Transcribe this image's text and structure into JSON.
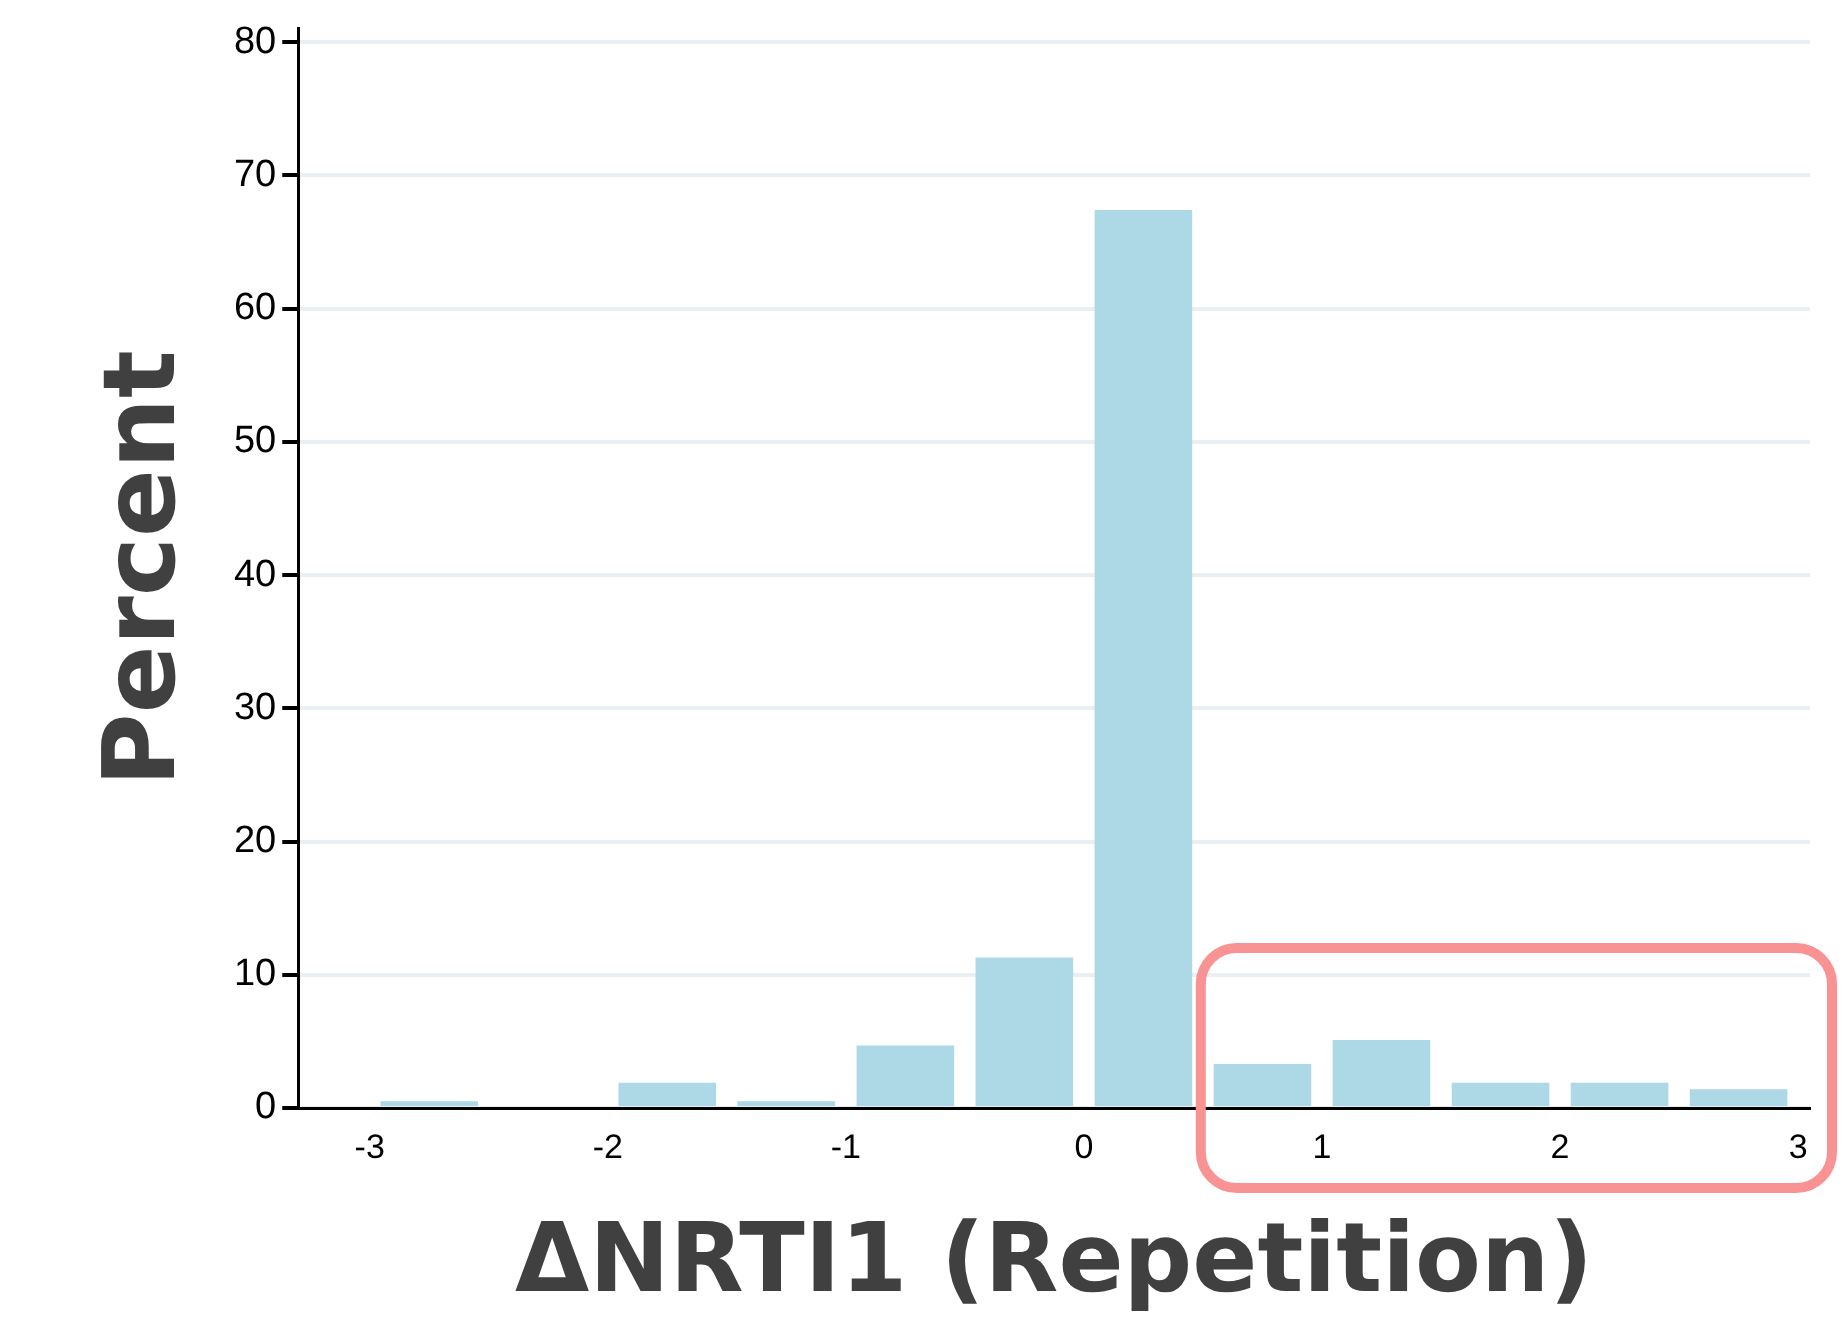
{
  "chart_data": {
    "type": "histogram",
    "xlabel": "ΔNRTI1 (Repetition)",
    "ylabel": "Percent",
    "bins": [
      -3,
      -2.5,
      -2,
      -1.5,
      -1,
      -0.5,
      0,
      0.5,
      1,
      1.5,
      2,
      2.5,
      3
    ],
    "values": [
      0.5,
      0,
      1.9,
      0.5,
      4.7,
      11.3,
      67.4,
      3.3,
      5.1,
      1.9,
      1.9,
      1.4
    ],
    "color": "#add8e6",
    "xlim": [
      -3.3,
      3.05
    ],
    "xticks": [
      -3,
      -2,
      -1,
      0,
      1,
      2,
      3
    ],
    "ylim": [
      0,
      81
    ],
    "yticks": [
      0,
      10,
      20,
      30,
      40,
      50,
      60,
      70,
      80
    ],
    "grid": "y",
    "legend": false
  }
}
